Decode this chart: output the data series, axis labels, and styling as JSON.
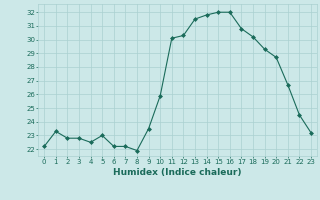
{
  "x": [
    0,
    1,
    2,
    3,
    4,
    5,
    6,
    7,
    8,
    9,
    10,
    11,
    12,
    13,
    14,
    15,
    16,
    17,
    18,
    19,
    20,
    21,
    22,
    23
  ],
  "y": [
    22.2,
    23.3,
    22.8,
    22.8,
    22.5,
    23.0,
    22.2,
    22.2,
    21.9,
    23.5,
    25.9,
    30.1,
    30.3,
    31.5,
    31.8,
    32.0,
    32.0,
    30.8,
    30.2,
    29.3,
    28.7,
    26.7,
    24.5,
    23.2
  ],
  "line_color": "#1a6b5a",
  "marker": "D",
  "marker_size": 2,
  "bg_color": "#cce8e8",
  "grid_color": "#aad0d0",
  "xlabel": "Humidex (Indice chaleur)",
  "ylabel_ticks": [
    22,
    23,
    24,
    25,
    26,
    27,
    28,
    29,
    30,
    31,
    32
  ],
  "xlim": [
    -0.5,
    23.5
  ],
  "ylim": [
    21.5,
    32.6
  ],
  "tick_fontsize": 5.0,
  "xlabel_fontsize": 6.5
}
